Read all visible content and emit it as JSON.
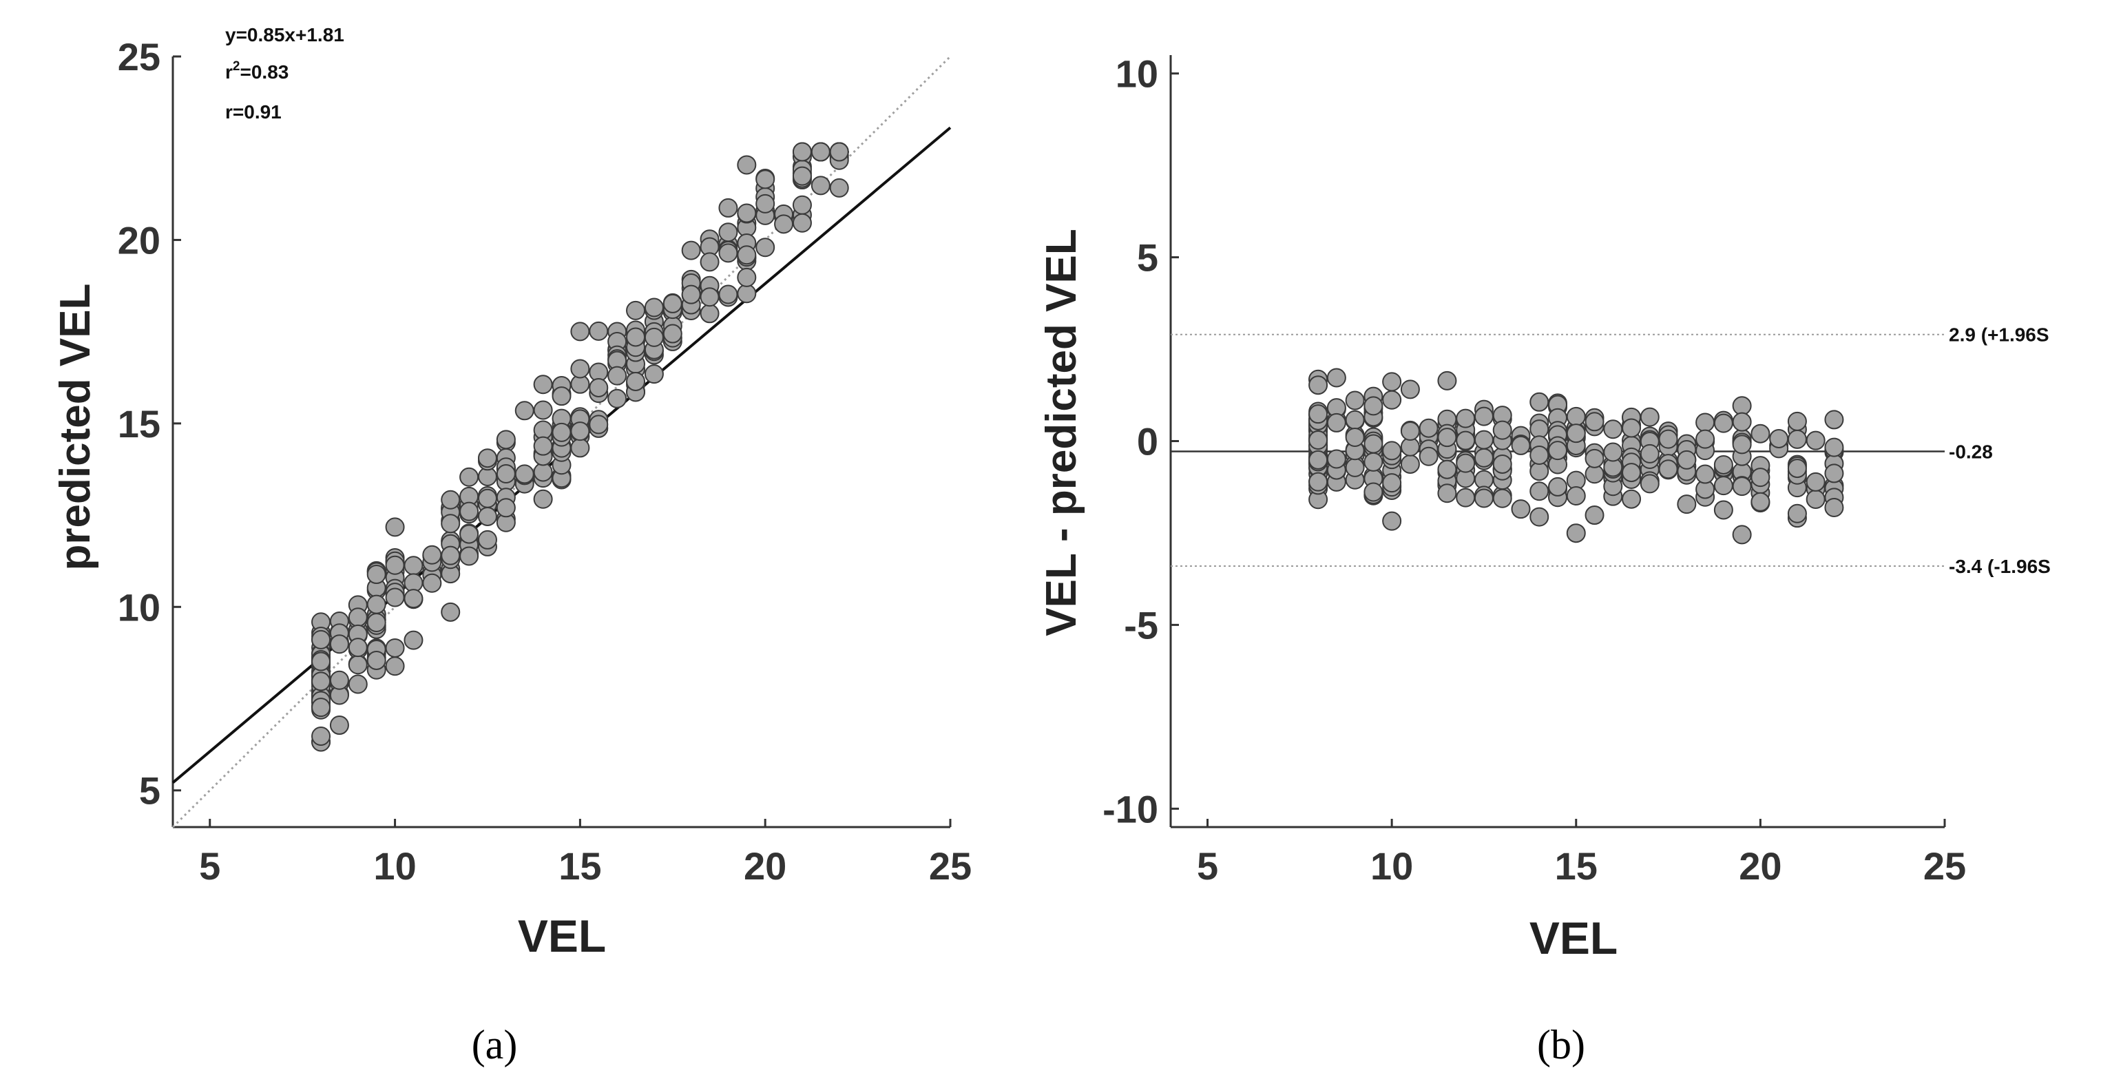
{
  "colors": {
    "point_fill": "#a4a4a4",
    "point_edge": "#3a3a3a",
    "axis": "#333333"
  },
  "chart_data": [
    {
      "type": "scatter",
      "panel": "a",
      "caption": "(a)",
      "xlabel": "VEL",
      "ylabel": "predicted  VEL",
      "xlim": [
        4,
        25
      ],
      "ylim": [
        4,
        25
      ],
      "xticks": [
        "5",
        "10",
        "15",
        "20",
        "25"
      ],
      "yticks": [
        "5",
        "10",
        "15",
        "20",
        "25"
      ],
      "regression": {
        "slope": 0.85,
        "intercept": 1.81
      },
      "identity_line": true,
      "annotations": {
        "equation": "y=0.85x+1.81",
        "r2_base": "r",
        "r2_sup": "2",
        "r2_value": "=0.83",
        "r": "r=0.91"
      }
    },
    {
      "type": "scatter",
      "panel": "b",
      "caption": "(b)",
      "xlabel": "VEL",
      "ylabel": "VEL - predicted  VEL",
      "xlim": [
        4,
        25
      ],
      "ylim": [
        -10.5,
        10.5
      ],
      "xticks": [
        "5",
        "10",
        "15",
        "20",
        "25"
      ],
      "yticks": [
        "10",
        "5",
        "0",
        "-5",
        "-10"
      ],
      "mean_line": -0.28,
      "upper_loa": 2.9,
      "lower_loa": -3.4,
      "labels": {
        "mean": "-0.28",
        "upper": "2.9 (+1.96S",
        "lower": "-3.4 (-1.96S"
      }
    }
  ]
}
